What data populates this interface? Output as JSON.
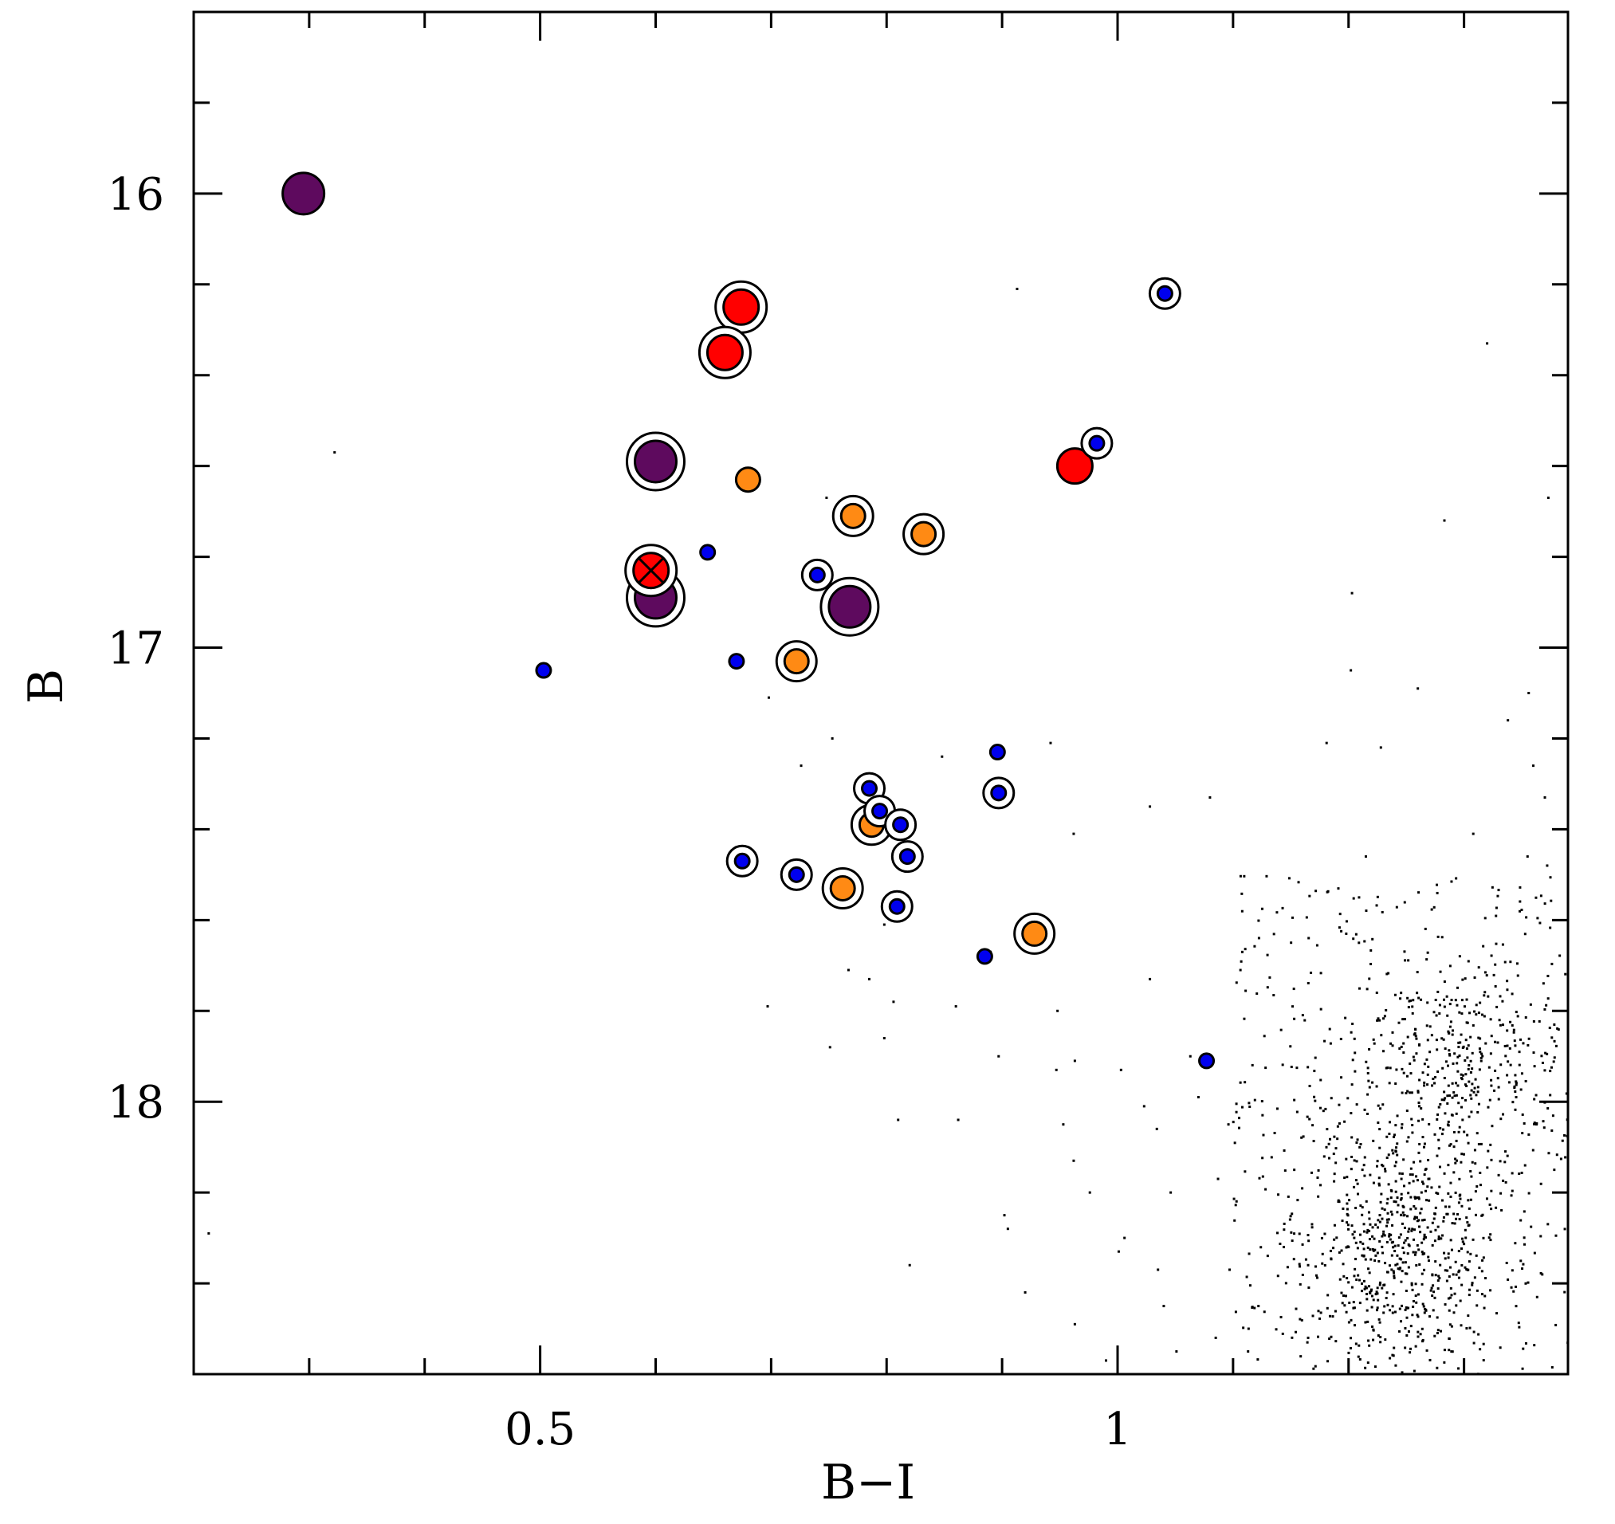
{
  "chart_data": {
    "type": "scatter",
    "xlabel": "B−I",
    "ylabel": "B",
    "xlim": [
      0.2,
      1.39
    ],
    "ylim": [
      18.6,
      15.6
    ],
    "y_inverted": true,
    "x_major_ticks": [
      0.5,
      1.0
    ],
    "x_tick_labels": [
      "0.5",
      "1"
    ],
    "x_minor_ticks": [
      0.3,
      0.4,
      0.6,
      0.7,
      0.8,
      0.9,
      1.1,
      1.2,
      1.3
    ],
    "y_major_ticks": [
      16.0,
      17.0,
      18.0
    ],
    "y_tick_labels": [
      "16",
      "17",
      "18"
    ],
    "y_minor_ticks": [
      15.8,
      16.2,
      16.4,
      16.6,
      16.8,
      17.2,
      17.4,
      17.6,
      17.8,
      18.2,
      18.4
    ],
    "grid": false,
    "legend": "none",
    "colors": {
      "purple": "#5e0a5e",
      "red": "#ff0000",
      "orange": "#ff8a14",
      "blue": "#0000ee",
      "background_stars": "#000000"
    },
    "series": [
      {
        "group": "purple",
        "points": [
          {
            "x": 0.295,
            "y": 16.0,
            "ring": false
          },
          {
            "x": 0.6,
            "y": 16.59,
            "ring": true
          },
          {
            "x": 0.6,
            "y": 16.89,
            "ring": true
          },
          {
            "x": 0.768,
            "y": 16.91,
            "ring": true
          }
        ]
      },
      {
        "group": "red",
        "points": [
          {
            "x": 0.674,
            "y": 16.25,
            "ring": true
          },
          {
            "x": 0.66,
            "y": 16.35,
            "ring": true
          },
          {
            "x": 0.596,
            "y": 16.83,
            "ring": true,
            "cross": true
          },
          {
            "x": 0.963,
            "y": 16.6,
            "ring": false
          }
        ]
      },
      {
        "group": "orange",
        "points": [
          {
            "x": 0.68,
            "y": 16.63,
            "ring": false
          },
          {
            "x": 0.771,
            "y": 16.71,
            "ring": true
          },
          {
            "x": 0.832,
            "y": 16.75,
            "ring": true
          },
          {
            "x": 0.722,
            "y": 17.03,
            "ring": true
          },
          {
            "x": 0.787,
            "y": 17.39,
            "ring": true
          },
          {
            "x": 0.762,
            "y": 17.53,
            "ring": true
          },
          {
            "x": 0.928,
            "y": 17.63,
            "ring": true
          }
        ]
      },
      {
        "group": "blue",
        "points": [
          {
            "x": 1.041,
            "y": 16.22,
            "ring": true
          },
          {
            "x": 0.982,
            "y": 16.55,
            "ring": true
          },
          {
            "x": 0.645,
            "y": 16.79,
            "ring": false
          },
          {
            "x": 0.74,
            "y": 16.84,
            "ring": true
          },
          {
            "x": 0.503,
            "y": 17.05,
            "ring": false
          },
          {
            "x": 0.67,
            "y": 17.03,
            "ring": false
          },
          {
            "x": 0.896,
            "y": 17.23,
            "ring": false
          },
          {
            "x": 0.785,
            "y": 17.31,
            "ring": true
          },
          {
            "x": 0.897,
            "y": 17.32,
            "ring": true
          },
          {
            "x": 0.794,
            "y": 17.36,
            "ring": true
          },
          {
            "x": 0.812,
            "y": 17.39,
            "ring": true
          },
          {
            "x": 0.818,
            "y": 17.46,
            "ring": true
          },
          {
            "x": 0.675,
            "y": 17.47,
            "ring": true
          },
          {
            "x": 0.722,
            "y": 17.5,
            "ring": true
          },
          {
            "x": 0.809,
            "y": 17.57,
            "ring": true
          },
          {
            "x": 0.885,
            "y": 17.68,
            "ring": false
          },
          {
            "x": 1.077,
            "y": 17.91,
            "ring": false
          }
        ]
      }
    ],
    "background": {
      "type": "scatter",
      "color": "#000000",
      "description_points": "field stars as small dots",
      "points": [
        [
          0.322,
          16.57
        ],
        [
          0.213,
          18.29
        ],
        [
          0.913,
          16.21
        ],
        [
          1.32,
          16.33
        ],
        [
          1.373,
          16.67
        ],
        [
          1.283,
          16.72
        ],
        [
          0.748,
          16.67
        ],
        [
          1.203,
          16.88
        ],
        [
          1.202,
          17.05
        ],
        [
          1.26,
          17.09
        ],
        [
          1.356,
          17.1
        ],
        [
          1.338,
          17.16
        ],
        [
          0.698,
          17.11
        ],
        [
          0.726,
          17.26
        ],
        [
          0.753,
          17.2
        ],
        [
          0.942,
          17.21
        ],
        [
          1.181,
          17.21
        ],
        [
          1.228,
          17.22
        ],
        [
          0.848,
          17.24
        ],
        [
          1.36,
          17.26
        ],
        [
          1.028,
          17.35
        ],
        [
          1.08,
          17.33
        ],
        [
          1.39,
          17.3
        ],
        [
          1.37,
          17.33
        ],
        [
          0.962,
          17.41
        ],
        [
          1.308,
          17.41
        ],
        [
          1.215,
          17.46
        ],
        [
          1.355,
          17.46
        ],
        [
          1.372,
          17.48
        ],
        [
          1.198,
          17.63
        ],
        [
          1.209,
          17.65
        ],
        [
          0.798,
          17.61
        ],
        [
          0.785,
          17.73
        ],
        [
          0.767,
          17.71
        ],
        [
          0.86,
          17.79
        ],
        [
          0.89,
          17.67
        ],
        [
          0.948,
          17.8
        ],
        [
          1.028,
          17.73
        ],
        [
          0.798,
          17.86
        ],
        [
          0.697,
          17.79
        ],
        [
          0.751,
          17.88
        ],
        [
          0.806,
          17.78
        ],
        [
          0.897,
          17.9
        ],
        [
          0.963,
          17.91
        ],
        [
          1.003,
          17.93
        ],
        [
          1.063,
          17.9
        ],
        [
          0.947,
          17.93
        ],
        [
          1.023,
          18.01
        ],
        [
          1.07,
          17.99
        ],
        [
          0.81,
          18.04
        ],
        [
          0.862,
          18.04
        ],
        [
          0.953,
          18.05
        ],
        [
          1.034,
          18.06
        ],
        [
          1.096,
          18.05
        ],
        [
          0.962,
          18.13
        ],
        [
          1.046,
          18.2
        ],
        [
          1.087,
          18.17
        ],
        [
          1.153,
          18.15
        ],
        [
          0.902,
          18.25
        ],
        [
          0.905,
          18.28
        ],
        [
          0.976,
          18.2
        ],
        [
          1.006,
          18.3
        ],
        [
          1.035,
          18.37
        ],
        [
          1.097,
          18.37
        ],
        [
          1.165,
          18.36
        ],
        [
          0.82,
          18.36
        ],
        [
          0.92,
          18.42
        ],
        [
          0.963,
          18.49
        ],
        [
          1.04,
          18.45
        ],
        [
          1.085,
          18.52
        ],
        [
          1.122,
          18.45
        ],
        [
          0.99,
          18.57
        ],
        [
          1.051,
          18.55
        ],
        [
          1.113,
          18.55
        ],
        [
          1.165,
          18.52
        ],
        [
          1.001,
          18.33
        ]
      ],
      "dense_cluster": {
        "upper": {
          "x_center": 1.295,
          "y_center": 17.9,
          "x_sigma": 0.045,
          "y_sigma": 0.1,
          "count": 320
        },
        "lower": {
          "x_center": 1.245,
          "y_center": 18.3,
          "x_sigma": 0.045,
          "y_sigma": 0.15,
          "count": 650
        },
        "diffuse": {
          "x_range": [
            1.1,
            1.39
          ],
          "y_range": [
            17.5,
            18.6
          ],
          "count": 420
        }
      }
    }
  }
}
